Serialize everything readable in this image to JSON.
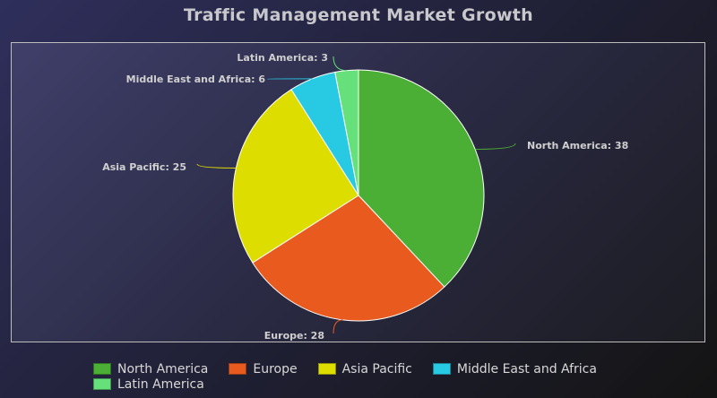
{
  "chart_data": {
    "type": "pie",
    "title": "Traffic Management Market Growth",
    "categories": [
      "North America",
      "Europe",
      "Asia Pacific",
      "Middle East and Africa",
      "Latin America"
    ],
    "values": [
      38,
      28,
      25,
      6,
      3
    ],
    "colors": [
      "#4caf35",
      "#e85a1e",
      "#dddd00",
      "#27c9e3",
      "#66e07a"
    ],
    "data_labels": [
      "North America: 38",
      "Europe: 28",
      "Asia Pacific: 25",
      "Middle East and Africa: 6",
      "Latin America: 3"
    ],
    "legend_position": "bottom"
  }
}
